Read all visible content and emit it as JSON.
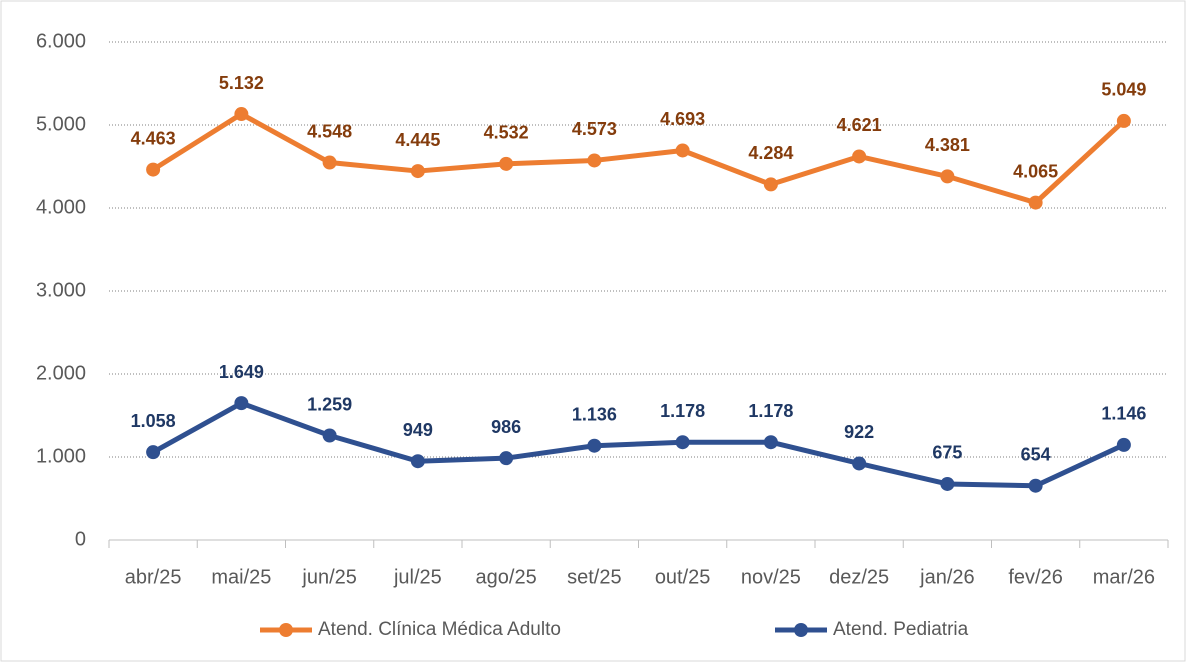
{
  "chart_data": {
    "type": "line",
    "categories": [
      "abr/25",
      "mai/25",
      "jun/25",
      "jul/25",
      "ago/25",
      "set/25",
      "out/25",
      "nov/25",
      "dez/25",
      "jan/26",
      "fev/26",
      "mar/26"
    ],
    "series": [
      {
        "name": "Atend. Clínica Médica Adulto",
        "color": "#ed7d31",
        "label_color": "#843c0c",
        "values": [
          4463,
          5132,
          4548,
          4445,
          4532,
          4573,
          4693,
          4284,
          4621,
          4381,
          4065,
          5049
        ],
        "value_labels": [
          "4.463",
          "5.132",
          "4.548",
          "4.445",
          "4.532",
          "4.573",
          "4.693",
          "4.284",
          "4.621",
          "4.381",
          "4.065",
          "5.049"
        ]
      },
      {
        "name": "Atend. Pediatria",
        "color": "#2f5090",
        "label_color": "#1f3864",
        "values": [
          1058,
          1649,
          1259,
          949,
          986,
          1136,
          1178,
          1178,
          922,
          675,
          654,
          1146
        ],
        "value_labels": [
          "1.058",
          "1.649",
          "1.259",
          "949",
          "986",
          "1.136",
          "1.178",
          "1.178",
          "922",
          "675",
          "654",
          "1.146"
        ]
      }
    ],
    "ylim": [
      0,
      6000
    ],
    "yticks": [
      0,
      {
        "value": 1000,
        "label": "1.000"
      },
      {
        "value": 2000,
        "label": "2.000"
      },
      {
        "value": 3000,
        "label": "3.000"
      },
      {
        "value": 4000,
        "label": "4.000"
      },
      {
        "value": 5000,
        "label": "5.000"
      },
      {
        "value": 6000,
        "label": "6.000"
      }
    ],
    "grid": true,
    "legend": "bottom"
  }
}
